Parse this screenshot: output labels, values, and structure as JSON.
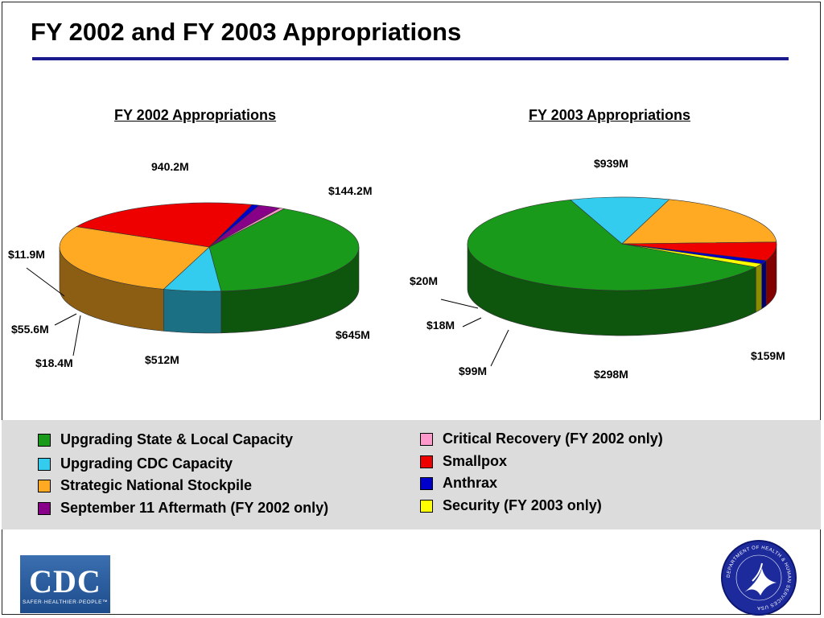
{
  "page": {
    "title": "FY 2002 and FY 2003 Appropriations"
  },
  "chart_data": [
    {
      "type": "pie",
      "title": "FY 2002 Appropriations",
      "slices": [
        {
          "category": "Upgrading State & Local Capacity",
          "value": 940.2,
          "label": "940.2M"
        },
        {
          "category": "Upgrading CDC Capacity",
          "value": 144.2,
          "label": "$144.2M"
        },
        {
          "category": "Strategic National Stockpile",
          "value": 645,
          "label": "$645M"
        },
        {
          "category": "Smallpox",
          "value": 512,
          "label": "$512M"
        },
        {
          "category": "Anthrax",
          "value": 18.4,
          "label": "$18.4M"
        },
        {
          "category": "September 11 Aftermath (FY 2002 only)",
          "value": 55.6,
          "label": "$55.6M"
        },
        {
          "category": "Critical Recovery (FY 2002 only)",
          "value": 11.9,
          "label": "$11.9M"
        }
      ]
    },
    {
      "type": "pie",
      "title": "FY 2003 Appropriations",
      "slices": [
        {
          "category": "Upgrading State & Local Capacity",
          "value": 939,
          "label": "$939M"
        },
        {
          "category": "Upgrading CDC Capacity",
          "value": 159,
          "label": "$159M"
        },
        {
          "category": "Strategic National Stockpile",
          "value": 298,
          "label": "$298M"
        },
        {
          "category": "Smallpox",
          "value": 99,
          "label": "$99M"
        },
        {
          "category": "Anthrax",
          "value": 18,
          "label": "$18M"
        },
        {
          "category": "Security (FY 2003 only)",
          "value": 20,
          "label": "$20M"
        }
      ]
    }
  ],
  "legend": {
    "items": [
      {
        "label": "Upgrading State & Local Capacity",
        "color": "#1a9a1a"
      },
      {
        "label": "Upgrading CDC Capacity",
        "color": "#33ccee"
      },
      {
        "label": "Strategic National Stockpile",
        "color": "#ffaa22"
      },
      {
        "label": "September 11 Aftermath (FY 2002 only)",
        "color": "#880088"
      },
      {
        "label": "Critical Recovery (FY 2002 only)",
        "color": "#ff99cc"
      },
      {
        "label": "Smallpox",
        "color": "#ee0000"
      },
      {
        "label": "Anthrax",
        "color": "#0000cc"
      },
      {
        "label": "Security (FY 2003 only)",
        "color": "#ffff00"
      }
    ]
  },
  "logos": {
    "cdc_text": "CDC",
    "cdc_tagline": "SAFER·HEALTHIER·PEOPLE™",
    "hhs_ring_text": "DEPARTMENT OF HEALTH & HUMAN SERVICES USA"
  }
}
